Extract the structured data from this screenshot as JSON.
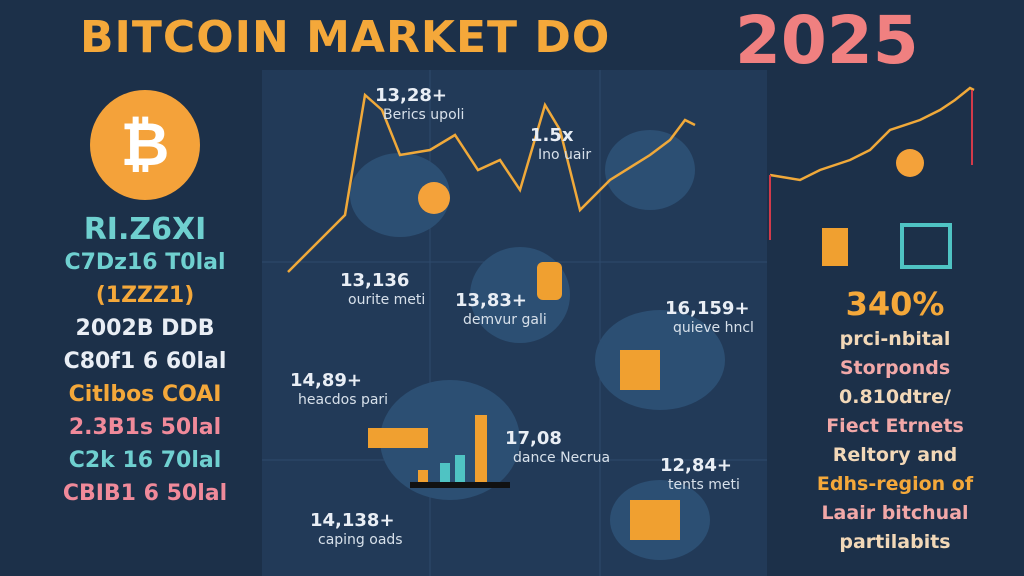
{
  "header": {
    "title": "BITCOIN MARKET DO",
    "year": "2025"
  },
  "left_stats": {
    "headline": "RI.Z6XI",
    "lines": [
      "C7Dz16 T0lal",
      "(1ZZZ1)",
      "2002B DDB",
      "C80f1 6 60lal",
      "Citlbos COAI",
      "2.3B1s 50lal",
      "C2k 16 70lal",
      "CBIB1 6 50lal"
    ]
  },
  "callouts": [
    {
      "value": "13,28+",
      "label": "Berics upoli"
    },
    {
      "value": "1.5x",
      "label": "Ino uair"
    },
    {
      "value": "13,136",
      "label": "ourite meti"
    },
    {
      "value": "13,83+",
      "label": "demvur gali"
    },
    {
      "value": "16,159+",
      "label": "quieve hncl"
    },
    {
      "value": "14,89+",
      "label": "heacdos pari"
    },
    {
      "value": "17,08",
      "label": "dance Necrua"
    },
    {
      "value": "12,84+",
      "label": "tents meti"
    },
    {
      "value": "14,138+",
      "label": "caping oads"
    }
  ],
  "right_panel": {
    "percent": "340%",
    "lines": [
      "prci-nbital",
      "Storponds",
      "0.810dtre/",
      "Fiect Etrnets",
      "Reltory and",
      "Edhs-region of",
      "Laair bitchual",
      "partilabits"
    ]
  }
}
